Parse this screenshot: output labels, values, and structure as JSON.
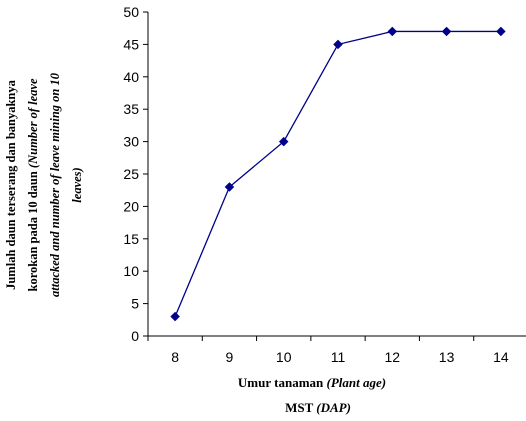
{
  "chart_data": {
    "type": "line",
    "title": "",
    "x": [
      8,
      9,
      10,
      11,
      12,
      13,
      14
    ],
    "series": [
      {
        "values": [
          3,
          23,
          30,
          45,
          47,
          47,
          47
        ]
      }
    ],
    "ylim": [
      0,
      50
    ],
    "yticks": [
      0,
      5,
      10,
      15,
      20,
      25,
      30,
      35,
      40,
      45,
      50
    ],
    "xlabel": {
      "line1_main": "Umur tanaman ",
      "line1_italic": "(Plant age)",
      "line2_main": "MST ",
      "line2_italic": "(DAP)"
    },
    "ylabel": {
      "line1": "Jumlah daun terserang dan banyaknya",
      "line2_main": "korokan pada 10 daun   ",
      "line2_italic": "(Number of leave",
      "line3": "attacked and number of leave mining on 10",
      "line4": "leaves)"
    },
    "grid": false,
    "legend": "none",
    "line_color": "#00008B",
    "marker": "diamond"
  }
}
